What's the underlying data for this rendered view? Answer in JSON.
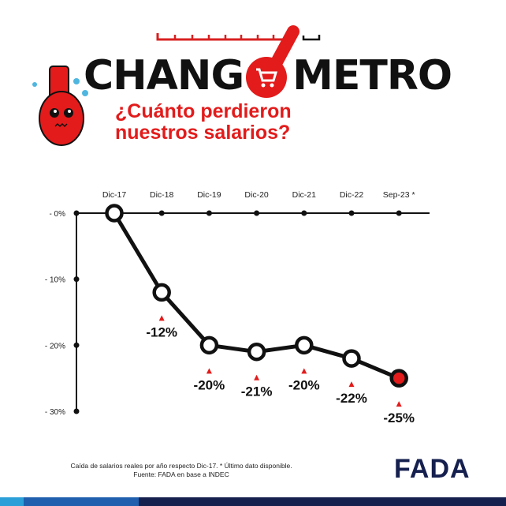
{
  "header": {
    "title_left": "CHANG",
    "title_right": "METRO",
    "subtitle_line1": "¿Cuánto perdieron",
    "subtitle_line2": "nuestros salarios?"
  },
  "footer": {
    "note": "Caída de salarios reales por año respecto Dic-17. * Último dato disponible.",
    "source": "Fuente: FADA en base a INDEC",
    "logo": "FADA"
  },
  "colors": {
    "accent": "#e31b1b",
    "navy": "#16204f",
    "blue": "#1f5fae",
    "light_blue": "#2a9fd8"
  },
  "chart_data": {
    "type": "line",
    "categories": [
      "Dic-17",
      "Dic-18",
      "Dic-19",
      "Dic-20",
      "Dic-21",
      "Dic-22",
      "Sep-23 *"
    ],
    "values": [
      0,
      -12,
      -20,
      -21,
      -20,
      -22,
      -25
    ],
    "data_labels": [
      "",
      "-12%",
      "-20%",
      "-21%",
      "-20%",
      "-22%",
      "-25%"
    ],
    "y_ticks": [
      "- 0%",
      "- 10%",
      "- 20%",
      "- 30%"
    ],
    "y_tick_values": [
      0,
      -10,
      -20,
      -30
    ],
    "ylim": [
      -30,
      0
    ],
    "x_axis_position": "top",
    "highlight_last": true
  }
}
